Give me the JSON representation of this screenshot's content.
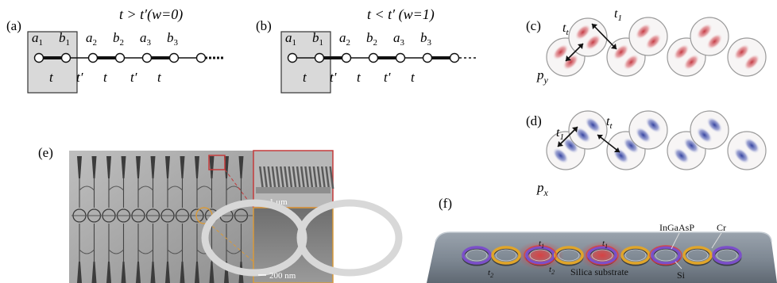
{
  "panels": {
    "a": {
      "label": "(a)",
      "title": "t > t′(w=0)",
      "sites": [
        "a",
        "b",
        "a",
        "b",
        "a",
        "b"
      ],
      "subs": [
        "1",
        "1",
        "2",
        "2",
        "3",
        "3"
      ],
      "bonds": [
        "t",
        "t′",
        "t",
        "t′",
        "t"
      ]
    },
    "b": {
      "label": "(b)",
      "title": "t < t′ (w=1)",
      "sites": [
        "a",
        "b",
        "a",
        "b",
        "a",
        "b"
      ],
      "subs": [
        "1",
        "1",
        "2",
        "2",
        "3",
        "3"
      ],
      "bonds": [
        "t",
        "t′",
        "t",
        "t′",
        "t"
      ]
    },
    "c": {
      "label": "(c)",
      "hop_left": "t",
      "hop_left_sub": "t",
      "hop_right": "t",
      "hop_right_sub": "1",
      "orbital": "p",
      "orbital_sub": "y",
      "color": "#c0323c"
    },
    "d": {
      "label": "(d)",
      "hop_left": "t",
      "hop_left_sub": "1",
      "hop_right": "t",
      "hop_right_sub": "t",
      "orbital": "p",
      "orbital_sub": "x",
      "color": "#2b3a9c"
    },
    "e": {
      "label": "(e)",
      "scale_top": "1 μm",
      "scale_bottom": "200 nm"
    },
    "f": {
      "label": "(f)",
      "materials": [
        "InGaAsP",
        "Cr",
        "Si"
      ],
      "substrate": "Silica substrate",
      "couplings": [
        {
          "t": "t",
          "sub": "1"
        },
        {
          "t": "t",
          "sub": "1"
        },
        {
          "t": "t",
          "sub": "2"
        },
        {
          "t": "t",
          "sub": "2"
        }
      ]
    }
  }
}
